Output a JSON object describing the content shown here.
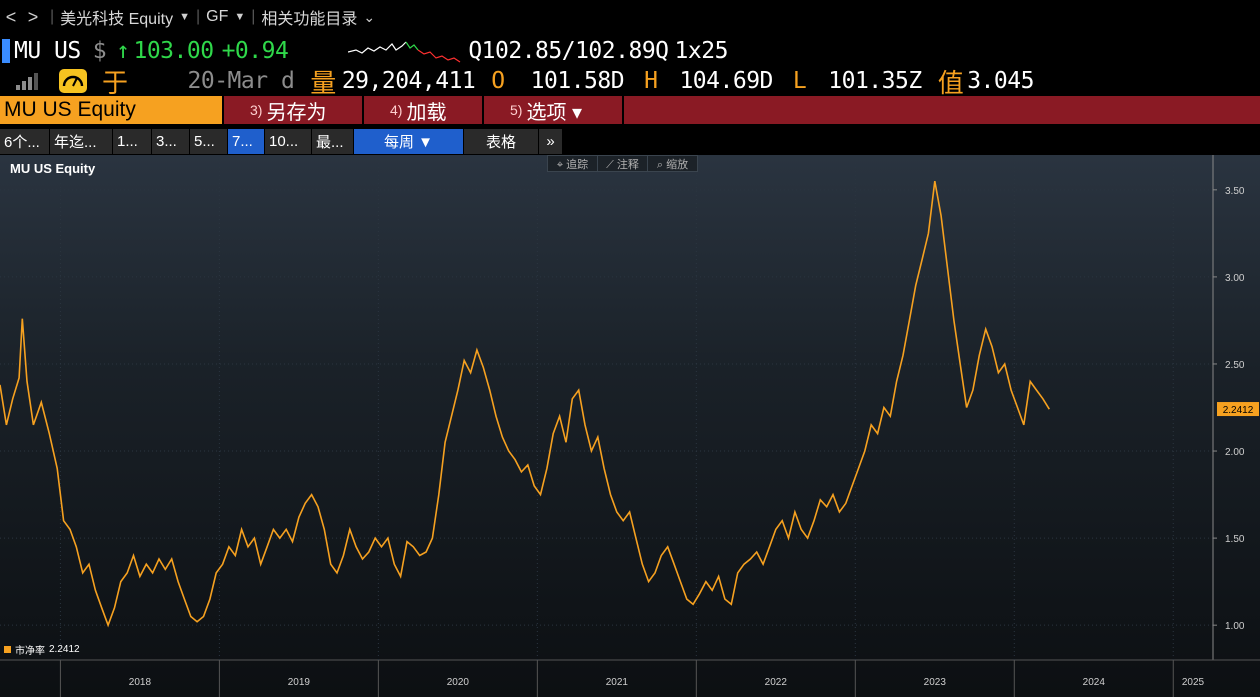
{
  "nav": {
    "back": "<",
    "forward": ">",
    "security": "美光科技 Equity",
    "gf": "GF",
    "related": "相关功能目录"
  },
  "quote": {
    "ticker": "MU US",
    "currency": "$",
    "arrow": "↑",
    "price": "103.00",
    "change": "+0.94",
    "bid_ask": "Q102.85/102.89Q",
    "size": "1x25",
    "date": "20-Mar d",
    "volume_label": "量",
    "volume": "29,204,411",
    "open_label": "O",
    "open": "101.58D",
    "high_label": "H",
    "high": "104.69D",
    "low_label": "L",
    "low": "101.35Z",
    "value_label": "值",
    "value": "3.045",
    "yu": "于"
  },
  "menu": {
    "ticker": "MU US Equity",
    "items": [
      {
        "num": "3)",
        "label": "另存为"
      },
      {
        "num": "4)",
        "label": "加载"
      },
      {
        "num": "5)",
        "label": "选项 ▾"
      }
    ]
  },
  "tabs": [
    {
      "label": "6个..."
    },
    {
      "label": "年迄..."
    },
    {
      "label": "1..."
    },
    {
      "label": "3..."
    },
    {
      "label": "5..."
    },
    {
      "label": "7..."
    },
    {
      "label": "10..."
    },
    {
      "label": "最..."
    }
  ],
  "period": "每周 ▼",
  "table_tab": "表格",
  "more": "»",
  "toolbar": {
    "track": "⌖ 追踪",
    "annotate": "⟋ 注释",
    "zoom": "⌕ 缩放"
  },
  "chart_data": {
    "type": "line",
    "title": "MU US Equity",
    "series_name": "市净率",
    "last_value": "2.2412",
    "x_ticks": [
      "2018",
      "2019",
      "2020",
      "2021",
      "2022",
      "2023",
      "2024",
      "2025"
    ],
    "y_ticks": [
      "1.00",
      "1.50",
      "2.00",
      "2.50",
      "3.00",
      "3.50"
    ],
    "ylim": [
      0.8,
      3.7
    ],
    "xlim": [
      2017.62,
      2025.25
    ],
    "color": "#f6a120",
    "points": [
      [
        2017.62,
        2.38
      ],
      [
        2017.66,
        2.15
      ],
      [
        2017.7,
        2.3
      ],
      [
        2017.74,
        2.42
      ],
      [
        2017.76,
        2.76
      ],
      [
        2017.79,
        2.4
      ],
      [
        2017.83,
        2.15
      ],
      [
        2017.88,
        2.28
      ],
      [
        2017.93,
        2.1
      ],
      [
        2017.98,
        1.9
      ],
      [
        2018.02,
        1.6
      ],
      [
        2018.06,
        1.55
      ],
      [
        2018.1,
        1.45
      ],
      [
        2018.14,
        1.3
      ],
      [
        2018.18,
        1.35
      ],
      [
        2018.22,
        1.2
      ],
      [
        2018.26,
        1.1
      ],
      [
        2018.3,
        1.0
      ],
      [
        2018.34,
        1.1
      ],
      [
        2018.38,
        1.25
      ],
      [
        2018.42,
        1.3
      ],
      [
        2018.46,
        1.4
      ],
      [
        2018.5,
        1.28
      ],
      [
        2018.54,
        1.35
      ],
      [
        2018.58,
        1.3
      ],
      [
        2018.62,
        1.38
      ],
      [
        2018.66,
        1.32
      ],
      [
        2018.7,
        1.38
      ],
      [
        2018.74,
        1.25
      ],
      [
        2018.78,
        1.15
      ],
      [
        2018.82,
        1.05
      ],
      [
        2018.86,
        1.02
      ],
      [
        2018.9,
        1.05
      ],
      [
        2018.94,
        1.15
      ],
      [
        2018.98,
        1.3
      ],
      [
        2019.02,
        1.35
      ],
      [
        2019.06,
        1.45
      ],
      [
        2019.1,
        1.4
      ],
      [
        2019.14,
        1.55
      ],
      [
        2019.18,
        1.45
      ],
      [
        2019.22,
        1.5
      ],
      [
        2019.26,
        1.35
      ],
      [
        2019.3,
        1.45
      ],
      [
        2019.34,
        1.55
      ],
      [
        2019.38,
        1.5
      ],
      [
        2019.42,
        1.55
      ],
      [
        2019.46,
        1.48
      ],
      [
        2019.5,
        1.62
      ],
      [
        2019.54,
        1.7
      ],
      [
        2019.58,
        1.75
      ],
      [
        2019.62,
        1.68
      ],
      [
        2019.66,
        1.55
      ],
      [
        2019.7,
        1.35
      ],
      [
        2019.74,
        1.3
      ],
      [
        2019.78,
        1.4
      ],
      [
        2019.82,
        1.55
      ],
      [
        2019.86,
        1.45
      ],
      [
        2019.9,
        1.38
      ],
      [
        2019.94,
        1.42
      ],
      [
        2019.98,
        1.5
      ],
      [
        2020.02,
        1.45
      ],
      [
        2020.06,
        1.5
      ],
      [
        2020.1,
        1.35
      ],
      [
        2020.14,
        1.28
      ],
      [
        2020.18,
        1.48
      ],
      [
        2020.22,
        1.45
      ],
      [
        2020.26,
        1.4
      ],
      [
        2020.3,
        1.42
      ],
      [
        2020.34,
        1.5
      ],
      [
        2020.38,
        1.75
      ],
      [
        2020.42,
        2.05
      ],
      [
        2020.46,
        2.2
      ],
      [
        2020.5,
        2.35
      ],
      [
        2020.54,
        2.52
      ],
      [
        2020.58,
        2.45
      ],
      [
        2020.62,
        2.58
      ],
      [
        2020.66,
        2.48
      ],
      [
        2020.7,
        2.35
      ],
      [
        2020.74,
        2.2
      ],
      [
        2020.78,
        2.08
      ],
      [
        2020.82,
        2.0
      ],
      [
        2020.86,
        1.95
      ],
      [
        2020.9,
        1.88
      ],
      [
        2020.94,
        1.92
      ],
      [
        2020.98,
        1.8
      ],
      [
        2021.02,
        1.75
      ],
      [
        2021.06,
        1.9
      ],
      [
        2021.1,
        2.1
      ],
      [
        2021.14,
        2.2
      ],
      [
        2021.18,
        2.05
      ],
      [
        2021.22,
        2.3
      ],
      [
        2021.26,
        2.35
      ],
      [
        2021.3,
        2.15
      ],
      [
        2021.34,
        2.0
      ],
      [
        2021.38,
        2.08
      ],
      [
        2021.42,
        1.9
      ],
      [
        2021.46,
        1.75
      ],
      [
        2021.5,
        1.65
      ],
      [
        2021.54,
        1.6
      ],
      [
        2021.58,
        1.65
      ],
      [
        2021.62,
        1.5
      ],
      [
        2021.66,
        1.35
      ],
      [
        2021.7,
        1.25
      ],
      [
        2021.74,
        1.3
      ],
      [
        2021.78,
        1.4
      ],
      [
        2021.82,
        1.45
      ],
      [
        2021.86,
        1.35
      ],
      [
        2021.9,
        1.25
      ],
      [
        2021.94,
        1.15
      ],
      [
        2021.98,
        1.12
      ],
      [
        2022.02,
        1.18
      ],
      [
        2022.06,
        1.25
      ],
      [
        2022.1,
        1.2
      ],
      [
        2022.14,
        1.28
      ],
      [
        2022.18,
        1.15
      ],
      [
        2022.22,
        1.12
      ],
      [
        2022.26,
        1.3
      ],
      [
        2022.3,
        1.35
      ],
      [
        2022.34,
        1.38
      ],
      [
        2022.38,
        1.42
      ],
      [
        2022.42,
        1.35
      ],
      [
        2022.46,
        1.45
      ],
      [
        2022.5,
        1.55
      ],
      [
        2022.54,
        1.6
      ],
      [
        2022.58,
        1.5
      ],
      [
        2022.62,
        1.65
      ],
      [
        2022.66,
        1.55
      ],
      [
        2022.7,
        1.5
      ],
      [
        2022.74,
        1.6
      ],
      [
        2022.78,
        1.72
      ],
      [
        2022.82,
        1.68
      ],
      [
        2022.86,
        1.75
      ],
      [
        2022.9,
        1.65
      ],
      [
        2022.94,
        1.7
      ],
      [
        2022.98,
        1.8
      ],
      [
        2023.02,
        1.9
      ],
      [
        2023.06,
        2.0
      ],
      [
        2023.1,
        2.15
      ],
      [
        2023.14,
        2.1
      ],
      [
        2023.18,
        2.25
      ],
      [
        2023.22,
        2.2
      ],
      [
        2023.26,
        2.4
      ],
      [
        2023.3,
        2.55
      ],
      [
        2023.34,
        2.75
      ],
      [
        2023.38,
        2.95
      ],
      [
        2023.42,
        3.1
      ],
      [
        2023.46,
        3.25
      ],
      [
        2023.5,
        3.55
      ],
      [
        2023.54,
        3.35
      ],
      [
        2023.58,
        3.05
      ],
      [
        2023.62,
        2.75
      ],
      [
        2023.66,
        2.5
      ],
      [
        2023.7,
        2.25
      ],
      [
        2023.74,
        2.35
      ],
      [
        2023.78,
        2.55
      ],
      [
        2023.82,
        2.7
      ],
      [
        2023.86,
        2.6
      ],
      [
        2023.9,
        2.45
      ],
      [
        2023.94,
        2.5
      ],
      [
        2023.98,
        2.35
      ],
      [
        2024.02,
        2.25
      ],
      [
        2024.06,
        2.15
      ],
      [
        2024.1,
        2.4
      ],
      [
        2024.14,
        2.35
      ],
      [
        2024.18,
        2.3
      ],
      [
        2024.22,
        2.24
      ]
    ]
  }
}
